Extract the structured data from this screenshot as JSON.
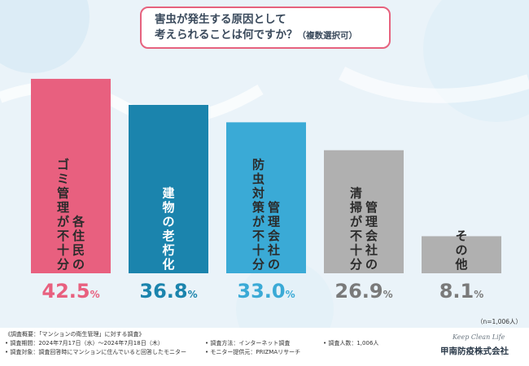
{
  "title": {
    "line1": "害虫が発生する原因として",
    "line2": "考えられることは何ですか？",
    "sub": "（複数選択可）"
  },
  "chart_data": {
    "type": "bar",
    "categories": [
      [
        "各住民の",
        "ゴミ管理が不十分"
      ],
      [
        "建物の老朽化"
      ],
      [
        "管理会社の",
        "防虫対策が不十分"
      ],
      [
        "管理会社の",
        "清掃が不十分"
      ],
      [
        "その他"
      ]
    ],
    "values": [
      42.5,
      36.8,
      33.0,
      26.9,
      8.1
    ],
    "value_labels": [
      "42.5",
      "36.8",
      "33.0",
      "26.9",
      "8.1"
    ],
    "unit": "%",
    "ylim": [
      0,
      48
    ],
    "colors": [
      "#e8607f",
      "#1b84ad",
      "#3aaad6",
      "#b0b0b0",
      "#b0b0b0"
    ],
    "label_colors": [
      "#e8607f",
      "#1b84ad",
      "#3aaad6",
      "#7a7a7a",
      "#7a7a7a"
    ],
    "category_text_colors": [
      "#2b2b2b",
      "#ffffff",
      "#2b2b2b",
      "#2b2b2b",
      "#2b2b2b"
    ]
  },
  "note_n": "（n=1,006人）",
  "footer": {
    "summary": "《調査概要：「マンションの衛生管理」に対する調査》",
    "period": "• 調査期間：2024年7月17日（水）～2024年7月18日（木）",
    "method": "• 調査方法：インターネット調査",
    "count": "• 調査人数：1,006人",
    "target": "• 調査対象：調査回答時にマンションに住んでいると回答したモニター",
    "provider": "• モニター提供元：PRIZMAリサーチ"
  },
  "brand": {
    "script": "Keep Clean Life",
    "name": "甲南防疫株式会社"
  }
}
